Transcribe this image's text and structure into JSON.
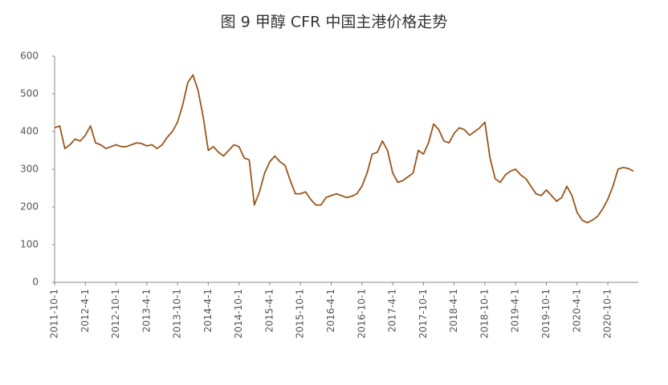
{
  "chart_data": {
    "type": "line",
    "title": "图 9 甲醇 CFR 中国主港价格走势",
    "categories": [
      "2011-10-1",
      null,
      null,
      null,
      null,
      null,
      "2012-4-1",
      null,
      null,
      null,
      null,
      null,
      "2012-10-1",
      null,
      null,
      null,
      null,
      null,
      "2013-4-1",
      null,
      null,
      null,
      null,
      null,
      "2013-10-1",
      null,
      null,
      null,
      null,
      null,
      "2014-4-1",
      null,
      null,
      null,
      null,
      null,
      "2014-10-1",
      null,
      null,
      null,
      null,
      null,
      "2015-4-1",
      null,
      null,
      null,
      null,
      null,
      "2015-10-1",
      null,
      null,
      null,
      null,
      null,
      "2016-4-1",
      null,
      null,
      null,
      null,
      null,
      "2016-10-1",
      null,
      null,
      null,
      null,
      null,
      "2017-4-1",
      null,
      null,
      null,
      null,
      null,
      "2017-10-1",
      null,
      null,
      null,
      null,
      null,
      "2018-4-1",
      null,
      null,
      null,
      null,
      null,
      "2018-10-1",
      null,
      null,
      null,
      null,
      null,
      "2019-4-1",
      null,
      null,
      null,
      null,
      null,
      "2019-10-1",
      null,
      null,
      null,
      null,
      null,
      "2020-4-1",
      null,
      null,
      null,
      null,
      null,
      "2020-10-1",
      null,
      null,
      null,
      null,
      null
    ],
    "series": [
      {
        "color": "#9a561c",
        "values": [
          410,
          415,
          355,
          365,
          380,
          375,
          390,
          415,
          370,
          365,
          355,
          360,
          365,
          360,
          360,
          365,
          370,
          368,
          362,
          365,
          355,
          365,
          385,
          400,
          425,
          470,
          530,
          550,
          510,
          440,
          350,
          360,
          345,
          335,
          350,
          365,
          360,
          330,
          325,
          205,
          240,
          290,
          320,
          335,
          320,
          310,
          270,
          235,
          235,
          240,
          220,
          205,
          205,
          225,
          230,
          235,
          230,
          225,
          228,
          235,
          255,
          290,
          340,
          345,
          375,
          350,
          290,
          265,
          270,
          280,
          290,
          350,
          340,
          370,
          420,
          405,
          375,
          370,
          395,
          410,
          405,
          390,
          400,
          410,
          425,
          330,
          275,
          265,
          285,
          295,
          300,
          285,
          275,
          255,
          235,
          230,
          245,
          230,
          215,
          225,
          255,
          230,
          185,
          165,
          158,
          165,
          175,
          195,
          220,
          255,
          300,
          305,
          302,
          295
        ]
      }
    ],
    "ylim": [
      0,
      600
    ],
    "yticks": [
      0,
      100,
      200,
      300,
      400,
      500,
      600
    ],
    "grid": false
  }
}
